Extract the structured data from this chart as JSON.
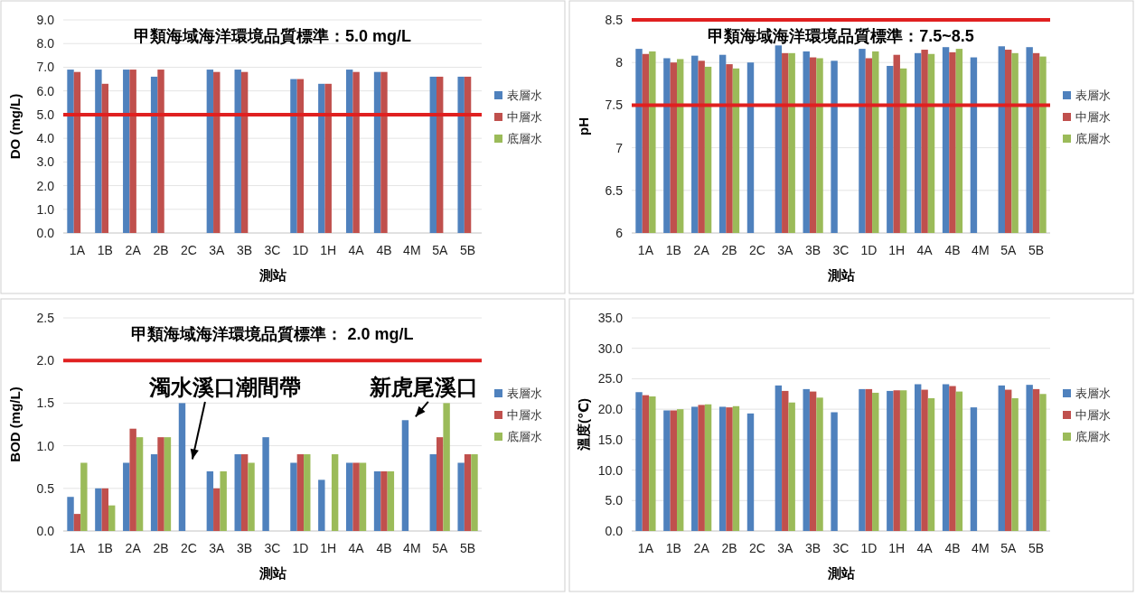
{
  "chart_data": [
    {
      "type": "bar",
      "title": "甲類海域海洋環境品質標準：5.0 mg/L",
      "xlabel": "測站",
      "ylabel": "DO (mg/L)",
      "categories": [
        "1A",
        "1B",
        "2A",
        "2B",
        "2C",
        "3A",
        "3B",
        "3C",
        "1D",
        "1H",
        "4A",
        "4B",
        "4M",
        "5A",
        "5B"
      ],
      "series": [
        {
          "name": "表層水",
          "color": "#4f81bd",
          "values": [
            6.9,
            6.9,
            6.9,
            6.6,
            null,
            6.9,
            6.9,
            null,
            6.5,
            6.3,
            6.9,
            6.8,
            null,
            6.6,
            6.6
          ]
        },
        {
          "name": "中層水",
          "color": "#c0504d",
          "values": [
            6.8,
            6.3,
            6.9,
            6.9,
            null,
            6.8,
            6.8,
            null,
            6.5,
            6.3,
            6.8,
            6.8,
            null,
            6.6,
            6.6
          ]
        },
        {
          "name": "底層水",
          "color": "#9bbb59",
          "values": [
            null,
            null,
            null,
            null,
            null,
            null,
            null,
            null,
            null,
            null,
            null,
            null,
            null,
            null,
            null
          ]
        }
      ],
      "ylim": [
        0,
        9
      ],
      "yticks": [
        {
          "value": 0,
          "label": "0.0"
        },
        {
          "value": 1,
          "label": "1.0"
        },
        {
          "value": 2,
          "label": "2.0"
        },
        {
          "value": 3,
          "label": "3.0"
        },
        {
          "value": 4,
          "label": "4.0"
        },
        {
          "value": 5,
          "label": "5.0"
        },
        {
          "value": 6,
          "label": "6.0"
        },
        {
          "value": 7,
          "label": "7.0"
        },
        {
          "value": 8,
          "label": "8.0"
        },
        {
          "value": 9,
          "label": "9.0"
        }
      ],
      "ref_lines": [
        {
          "axis": "y",
          "value": 5.0,
          "color": "#e02020"
        }
      ],
      "grid": "y",
      "legend": "right"
    },
    {
      "type": "bar",
      "title": "甲類海域海洋環境品質標準：7.5~8.5",
      "xlabel": "測站",
      "ylabel": "pH",
      "categories": [
        "1A",
        "1B",
        "2A",
        "2B",
        "2C",
        "3A",
        "3B",
        "3C",
        "1D",
        "1H",
        "4A",
        "4B",
        "4M",
        "5A",
        "5B"
      ],
      "series": [
        {
          "name": "表層水",
          "color": "#4f81bd",
          "values": [
            8.16,
            8.05,
            8.08,
            8.09,
            8.0,
            8.2,
            8.13,
            8.02,
            8.16,
            7.96,
            8.11,
            8.18,
            8.06,
            8.19,
            8.18
          ]
        },
        {
          "name": "中層水",
          "color": "#c0504d",
          "values": [
            8.1,
            8.0,
            8.02,
            7.98,
            null,
            8.11,
            8.06,
            null,
            8.05,
            8.09,
            8.15,
            8.12,
            null,
            8.15,
            8.11
          ]
        },
        {
          "name": "底層水",
          "color": "#9bbb59",
          "values": [
            8.13,
            8.04,
            7.95,
            7.93,
            null,
            8.11,
            8.05,
            null,
            8.13,
            7.93,
            8.1,
            8.16,
            null,
            8.11,
            8.07
          ]
        }
      ],
      "ylim": [
        6,
        8.5
      ],
      "yticks": [
        6,
        6.5,
        7,
        7.5,
        8,
        8.5
      ],
      "ref_lines": [
        {
          "axis": "y",
          "value": 7.5,
          "color": "#e02020"
        },
        {
          "axis": "y",
          "value": 8.5,
          "color": "#e02020"
        }
      ],
      "grid": "y",
      "legend": "right"
    },
    {
      "type": "bar",
      "title": "甲類海域海洋環境品質標準： 2.0 mg/L",
      "xlabel": "測站",
      "ylabel": "BOD (mg/L)",
      "categories": [
        "1A",
        "1B",
        "2A",
        "2B",
        "2C",
        "3A",
        "3B",
        "3C",
        "1D",
        "1H",
        "4A",
        "4B",
        "4M",
        "5A",
        "5B"
      ],
      "series": [
        {
          "name": "表層水",
          "color": "#4f81bd",
          "values": [
            0.4,
            0.5,
            0.8,
            0.9,
            1.5,
            0.7,
            0.9,
            1.1,
            0.8,
            0.6,
            0.8,
            0.7,
            1.3,
            0.9,
            0.8
          ]
        },
        {
          "name": "中層水",
          "color": "#c0504d",
          "values": [
            0.2,
            0.5,
            1.2,
            1.1,
            null,
            0.5,
            0.9,
            null,
            0.9,
            null,
            0.8,
            0.7,
            null,
            1.1,
            0.9
          ]
        },
        {
          "name": "底層水",
          "color": "#9bbb59",
          "values": [
            0.8,
            0.3,
            1.1,
            1.1,
            null,
            0.7,
            0.8,
            null,
            0.9,
            0.9,
            0.8,
            0.7,
            null,
            1.5,
            0.9
          ]
        }
      ],
      "ylim": [
        0,
        2.5
      ],
      "yticks": [
        {
          "value": 0,
          "label": "0.0"
        },
        {
          "value": 0.5,
          "label": "0.5"
        },
        {
          "value": 1,
          "label": "1.0"
        },
        {
          "value": 1.5,
          "label": "1.5"
        },
        {
          "value": 2,
          "label": "2.0"
        },
        {
          "value": 2.5,
          "label": "2.5"
        }
      ],
      "ref_lines": [
        {
          "axis": "y",
          "value": 2.0,
          "color": "#e02020"
        }
      ],
      "annotations": [
        {
          "text": "濁水溪口潮間帶",
          "x": "2C",
          "y": 0.8
        },
        {
          "text": "新虎尾溪口",
          "x": "4M",
          "y": 1.3
        }
      ],
      "grid": "y",
      "legend": "right"
    },
    {
      "type": "bar",
      "xlabel": "測站",
      "ylabel": "溫度(℃)",
      "categories": [
        "1A",
        "1B",
        "2A",
        "2B",
        "2C",
        "3A",
        "3B",
        "3C",
        "1D",
        "1H",
        "4A",
        "4B",
        "4M",
        "5A",
        "5B"
      ],
      "series": [
        {
          "name": "表層水",
          "color": "#4f81bd",
          "values": [
            22.8,
            19.8,
            20.4,
            20.4,
            19.3,
            23.9,
            23.3,
            19.5,
            23.3,
            23.0,
            24.1,
            24.1,
            20.3,
            23.9,
            24.0
          ]
        },
        {
          "name": "中層水",
          "color": "#c0504d",
          "values": [
            22.3,
            19.8,
            20.7,
            20.3,
            null,
            23.0,
            22.9,
            null,
            23.3,
            23.1,
            23.2,
            23.8,
            null,
            23.2,
            23.3
          ]
        },
        {
          "name": "底層水",
          "color": "#9bbb59",
          "values": [
            22.1,
            20.0,
            20.8,
            20.5,
            null,
            21.1,
            21.9,
            null,
            22.7,
            23.1,
            21.8,
            22.9,
            null,
            21.8,
            22.5
          ]
        }
      ],
      "ylim": [
        0,
        35
      ],
      "yticks": [
        {
          "value": 0,
          "label": "0.0"
        },
        {
          "value": 5,
          "label": "5.0"
        },
        {
          "value": 10,
          "label": "10.0"
        },
        {
          "value": 15,
          "label": "15.0"
        },
        {
          "value": 20,
          "label": "20.0"
        },
        {
          "value": 25,
          "label": "25.0"
        },
        {
          "value": 30,
          "label": "30.0"
        },
        {
          "value": 35,
          "label": "35.0"
        }
      ],
      "grid": "y",
      "legend": "right"
    }
  ]
}
